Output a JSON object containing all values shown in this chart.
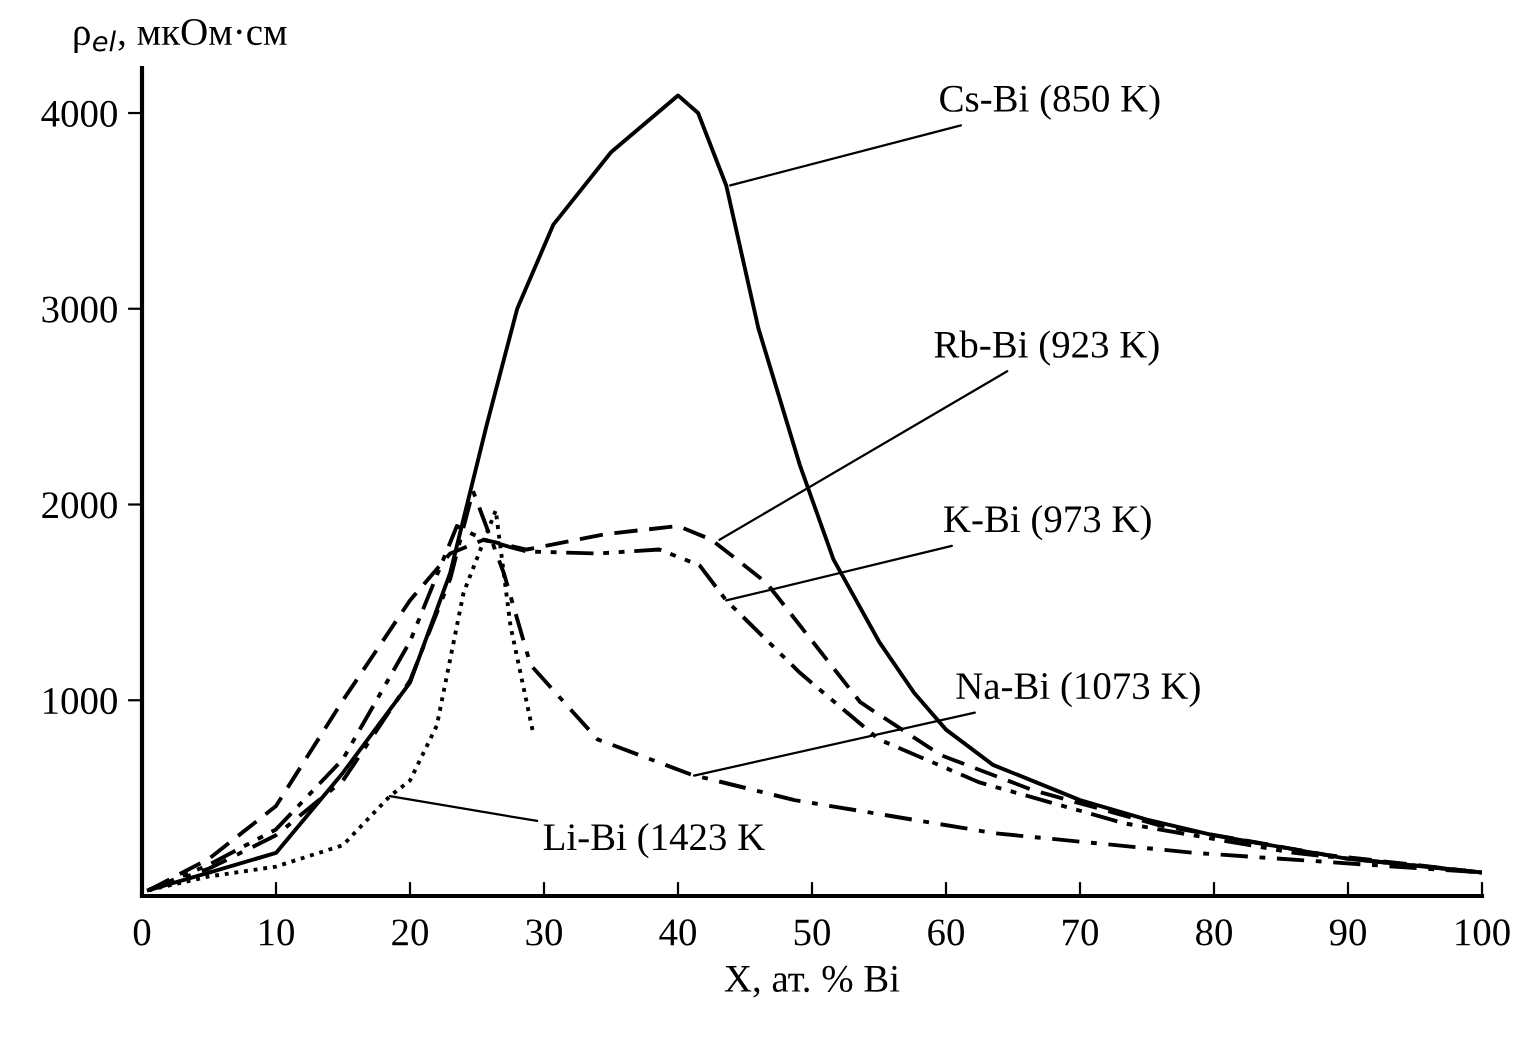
{
  "chart_data": {
    "type": "line",
    "xlabel": "X, ат. % Bi",
    "ylabel": "ρ$_{el}$, мкОм·см",
    "xlim": [
      0,
      100
    ],
    "ylim": [
      0,
      4230
    ],
    "xticks": [
      0,
      10,
      20,
      30,
      40,
      50,
      60,
      70,
      80,
      90,
      100
    ],
    "yticks": [
      1000,
      2000,
      3000,
      4000
    ],
    "grid": false,
    "legend": false,
    "marker": "none",
    "series": [
      {
        "color": "#000000",
        "line_style": "solid",
        "x": [
          0.5,
          5,
          10,
          15,
          20,
          23,
          25.7,
          28,
          30.7,
          35,
          40,
          41.5,
          43.6,
          46,
          49.1,
          51.6,
          55,
          57.6,
          60,
          63.5,
          70,
          75,
          80,
          90,
          100
        ],
        "values": [
          30,
          120,
          220,
          630,
          1090,
          1650,
          2400,
          3000,
          3430,
          3800,
          4090,
          4000,
          3630,
          2900,
          2200,
          1720,
          1300,
          1040,
          850,
          670,
          490,
          390,
          310,
          190,
          120
        ]
      },
      {
        "color": "#000000",
        "line_style": "dashed",
        "x": [
          0.5,
          5,
          10,
          15,
          20,
          23,
          25.5,
          28.7,
          34.7,
          40,
          42.5,
          46.6,
          53.6,
          59.6,
          66.5,
          76,
          88.4,
          100
        ],
        "values": [
          30,
          190,
          460,
          1000,
          1510,
          1750,
          1820,
          1770,
          1850,
          1890,
          1820,
          1600,
          990,
          720,
          540,
          360,
          210,
          120
        ]
      },
      {
        "color": "#000000",
        "line_style": "dashdotdot",
        "x": [
          0.5,
          5,
          10,
          15,
          20,
          23.5,
          25.5,
          28.7,
          34,
          38.6,
          41.6,
          43.6,
          49.1,
          55,
          62.5,
          73.4,
          86,
          100
        ],
        "values": [
          30,
          160,
          340,
          700,
          1300,
          1890,
          1820,
          1760,
          1750,
          1770,
          1690,
          1510,
          1140,
          800,
          580,
          370,
          220,
          120
        ]
      },
      {
        "color": "#000000",
        "line_style": "dashdot",
        "x": [
          0.5,
          5,
          10,
          15,
          20,
          23,
          24.7,
          27,
          29,
          34,
          41,
          48.7,
          63.7,
          78.6,
          100
        ],
        "values": [
          30,
          140,
          310,
          590,
          1100,
          1620,
          2070,
          1650,
          1180,
          800,
          620,
          490,
          320,
          220,
          120
        ]
      },
      {
        "color": "#000000",
        "line_style": "dotted",
        "x": [
          0.5,
          5,
          10,
          15,
          18.5,
          20,
          22,
          24,
          26.4,
          27.5,
          29.2
        ],
        "values": [
          30,
          100,
          150,
          260,
          510,
          590,
          870,
          1550,
          1970,
          1380,
          830
        ]
      }
    ],
    "annotations": [
      {
        "text": "Cs-Bi (850 K)",
        "x": 43.9,
        "y": 3630
      },
      {
        "text": "Rb-Bi (923 K)",
        "x": 43.1,
        "y": 1820
      },
      {
        "text": "K-Bi (973 K)",
        "x": 43.6,
        "y": 1510
      },
      {
        "text": "Na-Bi (1073 K)",
        "x": 41.2,
        "y": 615
      },
      {
        "text": "Li-Bi (1423 K",
        "x": 18.5,
        "y": 510
      }
    ]
  }
}
